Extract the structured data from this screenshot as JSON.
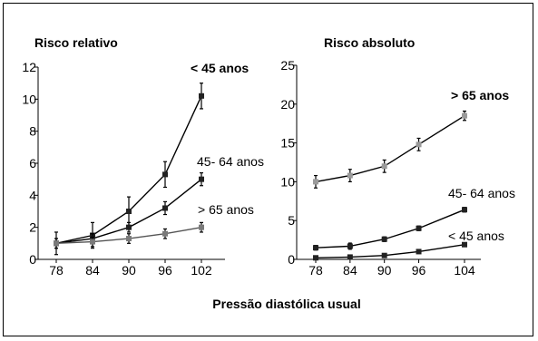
{
  "xlabel": "Pressão diastólica usual",
  "chart_data": [
    {
      "type": "line",
      "title": "Risco relativo",
      "x": [
        78,
        84,
        90,
        96,
        102
      ],
      "ylim": [
        0,
        12
      ],
      "yticks": [
        "0",
        "2",
        "4",
        "6",
        "8",
        "10",
        "12"
      ],
      "xticks": [
        "78",
        "84",
        "90",
        "96",
        "102"
      ],
      "series": [
        {
          "name": "< 45 anos",
          "bold": true,
          "color": "#000000",
          "values": [
            1.0,
            1.5,
            3.0,
            5.3,
            10.2
          ],
          "err": [
            0.7,
            0.8,
            0.9,
            0.8,
            0.8
          ]
        },
        {
          "name": "45- 64 anos",
          "bold": false,
          "color": "#000000",
          "values": [
            1.0,
            1.3,
            2.0,
            3.2,
            5.0
          ],
          "err": [
            0.3,
            0.3,
            0.3,
            0.4,
            0.4
          ]
        },
        {
          "name": "> 65 anos",
          "bold": false,
          "color": "#555555",
          "values": [
            1.0,
            1.1,
            1.3,
            1.6,
            2.0
          ],
          "err": [
            0.3,
            0.3,
            0.3,
            0.3,
            0.3
          ]
        }
      ]
    },
    {
      "type": "line",
      "title": "Risco absoluto",
      "x": [
        78,
        84,
        90,
        96,
        104
      ],
      "ylim": [
        0,
        25
      ],
      "yticks": [
        "0",
        "5",
        "10",
        "15",
        "20",
        "25"
      ],
      "xticks": [
        "78",
        "84",
        "90",
        "96",
        "104"
      ],
      "series": [
        {
          "name": "> 65 anos",
          "bold": true,
          "color": "#000000",
          "values": [
            10.0,
            10.8,
            12.0,
            14.8,
            18.5
          ],
          "err": [
            0.8,
            0.8,
            0.8,
            0.8,
            0.6
          ]
        },
        {
          "name": "45- 64 anos",
          "bold": false,
          "color": "#000000",
          "values": [
            1.5,
            1.7,
            2.6,
            4.0,
            6.4
          ],
          "err": [
            0.3,
            0.4,
            0.3,
            0.3,
            0.3
          ]
        },
        {
          "name": "< 45 anos",
          "bold": false,
          "color": "#000000",
          "values": [
            0.2,
            0.3,
            0.5,
            1.0,
            1.9
          ],
          "err": [
            0.15,
            0.15,
            0.15,
            0.15,
            0.2
          ]
        }
      ]
    }
  ]
}
